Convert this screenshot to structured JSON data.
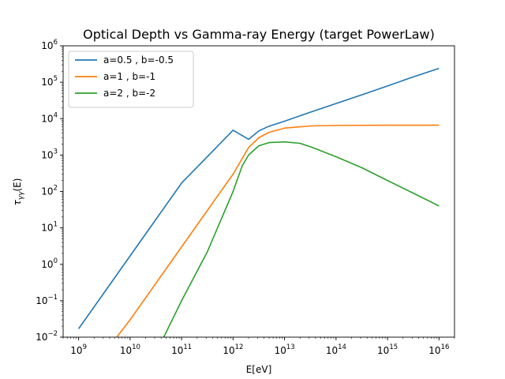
{
  "chart_data": {
    "type": "line",
    "title": "Optical Depth vs Gamma-ray Energy (target PowerLaw)",
    "xlabel": "E[eV]",
    "ylabel_main": "τ",
    "ylabel_sub": "γγ",
    "ylabel_arg": "(E)",
    "xscale": "log",
    "yscale": "log",
    "xlim": [
      500000000.0,
      2e+16
    ],
    "ylim": [
      0.01,
      1000000
    ],
    "x_ticks": [
      {
        "value": 1000000000.0,
        "base": "10",
        "exp": "9"
      },
      {
        "value": 10000000000.0,
        "base": "10",
        "exp": "10"
      },
      {
        "value": 100000000000.0,
        "base": "10",
        "exp": "11"
      },
      {
        "value": 1000000000000.0,
        "base": "10",
        "exp": "12"
      },
      {
        "value": 10000000000000.0,
        "base": "10",
        "exp": "13"
      },
      {
        "value": 100000000000000.0,
        "base": "10",
        "exp": "14"
      },
      {
        "value": 1000000000000000.0,
        "base": "10",
        "exp": "15"
      },
      {
        "value": 1e+16,
        "base": "10",
        "exp": "16"
      }
    ],
    "y_ticks": [
      {
        "value": 0.01,
        "base": "10",
        "exp": "−2"
      },
      {
        "value": 0.1,
        "base": "10",
        "exp": "−1"
      },
      {
        "value": 1,
        "base": "10",
        "exp": "0"
      },
      {
        "value": 10,
        "base": "10",
        "exp": "1"
      },
      {
        "value": 100,
        "base": "10",
        "exp": "2"
      },
      {
        "value": 1000,
        "base": "10",
        "exp": "3"
      },
      {
        "value": 10000,
        "base": "10",
        "exp": "4"
      },
      {
        "value": 100000,
        "base": "10",
        "exp": "5"
      },
      {
        "value": 1000000,
        "base": "10",
        "exp": "6"
      }
    ],
    "grid": false,
    "legend_position": "top-left",
    "series": [
      {
        "name": "a=0.5 , b=-0.5",
        "color": "#1f77b4",
        "x": [
          1000000000.0,
          3160000000.0,
          10000000000.0,
          31600000000.0,
          100000000000.0,
          316000000000.0,
          1000000000000.0,
          2000000000000.0,
          3160000000000.0,
          5000000000000.0,
          10000000000000.0,
          31600000000000.0,
          100000000000000.0,
          316000000000000.0,
          1000000000000000.0,
          3160000000000000.0,
          1e+16
        ],
        "y": [
          0.017,
          0.17,
          1.7,
          17,
          170,
          900,
          4800,
          2700,
          4600,
          6200,
          8500,
          15000,
          26000,
          45000,
          79000,
          140000,
          240000
        ]
      },
      {
        "name": "a=1 , b=-1",
        "color": "#ff7f0e",
        "x": [
          5500000000.0,
          10000000000.0,
          31600000000.0,
          100000000000.0,
          316000000000.0,
          1000000000000.0,
          2000000000000.0,
          3160000000000.0,
          5000000000000.0,
          10000000000000.0,
          31600000000000.0,
          100000000000000.0,
          1000000000000000.0,
          1e+16
        ],
        "y": [
          0.01,
          0.03,
          0.3,
          3,
          30,
          300,
          1600,
          3000,
          4200,
          5500,
          6300,
          6500,
          6600,
          6600
        ]
      },
      {
        "name": "a=2 , b=-2",
        "color": "#2ca02c",
        "x": [
          45000000000.0,
          100000000000.0,
          316000000000.0,
          1000000000000.0,
          1500000000000.0,
          2000000000000.0,
          3160000000000.0,
          5000000000000.0,
          10000000000000.0,
          20000000000000.0,
          31600000000000.0,
          100000000000000.0,
          316000000000000.0,
          1000000000000000.0,
          3160000000000000.0,
          1e+16
        ],
        "y": [
          0.01,
          0.1,
          2.2,
          100,
          500,
          1000,
          1800,
          2200,
          2300,
          2100,
          1700,
          900,
          450,
          200,
          90,
          40
        ]
      }
    ]
  }
}
